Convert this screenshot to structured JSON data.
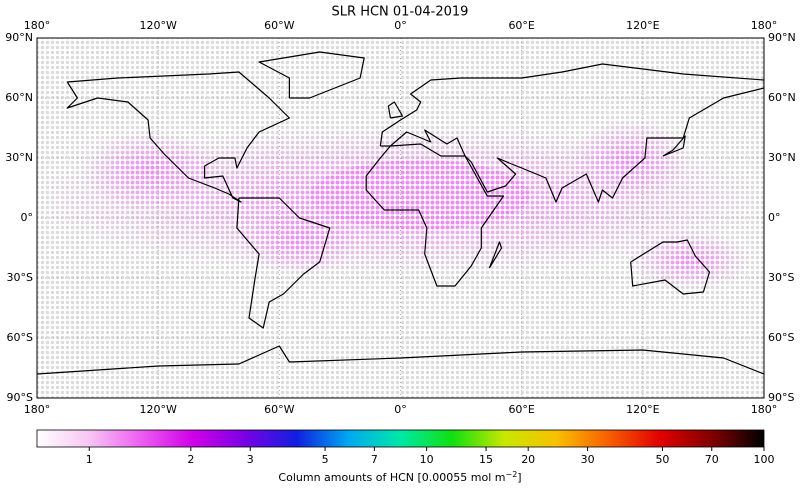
{
  "title": "SLR HCN 01-04-2019",
  "map": {
    "lon_labels": [
      "180°",
      "120°W",
      "60°W",
      "0°",
      "60°E",
      "120°E",
      "180°"
    ],
    "lat_labels": [
      "90°N",
      "60°N",
      "30°N",
      "0°",
      "30°S",
      "60°S",
      "90°S"
    ]
  },
  "colorbar": {
    "label": "Column amounts of HCN [0.00055 mol m",
    "label_exponent": "−2",
    "label_end": "]",
    "log": true,
    "lim": [
      0.7,
      100
    ],
    "ticks": [
      1,
      2,
      3,
      5,
      7,
      10,
      15,
      20,
      30,
      50,
      70,
      100
    ],
    "colors": [
      "#ffffff",
      "#f7c6f3",
      "#ec5ff0",
      "#d000e8",
      "#7a00e6",
      "#1020e0",
      "#00a8f0",
      "#00e8a8",
      "#10e010",
      "#c8e800",
      "#f8c000",
      "#f86000",
      "#e00000",
      "#800000",
      "#000000"
    ]
  }
}
